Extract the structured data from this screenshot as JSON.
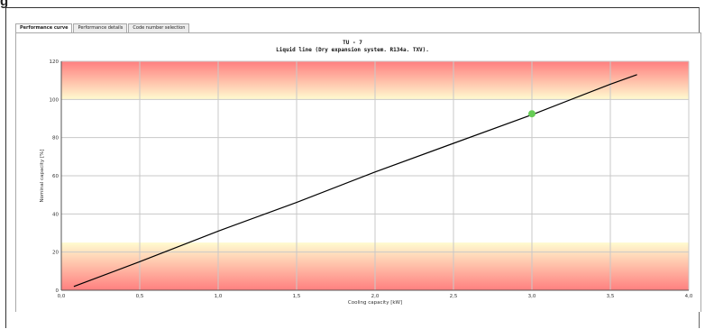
{
  "heading_fragment": "g",
  "tabs": [
    {
      "label": "Performance curve",
      "active": true
    },
    {
      "label": "Performance details",
      "active": false
    },
    {
      "label": "Code number selection",
      "active": false
    }
  ],
  "chart_data": {
    "type": "line",
    "title": "TU - 7",
    "subtitle": "Liquid line (Dry expansion system. R134a. TXV).",
    "xlabel": "Cooling capacity [kW]",
    "ylabel": "Nominal capacity [%]",
    "xlim": [
      0,
      4
    ],
    "ylim": [
      0,
      120
    ],
    "x_ticks": [
      0,
      0.5,
      1.0,
      1.5,
      2.0,
      2.5,
      3.0,
      3.5,
      4.0
    ],
    "x_tick_labels": [
      "0,0",
      "0,5",
      "1,0",
      "1,5",
      "2,0",
      "2,5",
      "3,0",
      "3,5",
      "4,0"
    ],
    "y_ticks": [
      0,
      20,
      40,
      60,
      80,
      100,
      120
    ],
    "y_tick_labels": [
      "0",
      "20",
      "40",
      "60",
      "80",
      "100",
      "120"
    ],
    "grid": true,
    "bands": [
      {
        "y_from": 100,
        "y_to": 120,
        "color_edge": "#ff7f7f",
        "color_inner": "#fffbd0"
      },
      {
        "y_from": 0,
        "y_to": 25,
        "color_edge": "#ff7f7f",
        "color_inner": "#fffbd0"
      }
    ],
    "series": [
      {
        "color": "#000000",
        "x": [
          0.08,
          0.5,
          1.0,
          1.5,
          2.0,
          2.5,
          3.0,
          3.5,
          3.67
        ],
        "y": [
          2,
          15,
          31,
          46,
          62,
          77,
          92,
          108,
          113
        ]
      }
    ],
    "marker": {
      "x": 3.0,
      "y": 92.5,
      "color": "#66cc55"
    }
  }
}
